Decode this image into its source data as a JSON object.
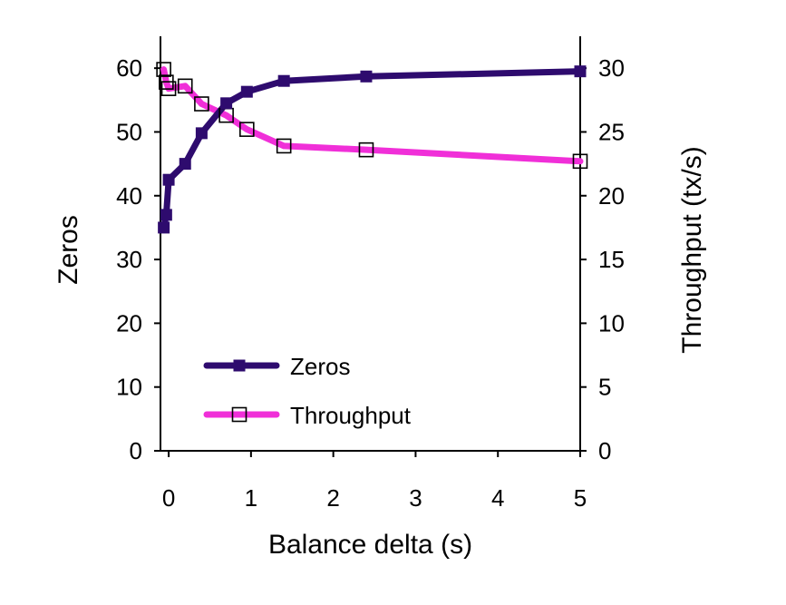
{
  "chart_data": {
    "type": "line",
    "xlabel": "Balance delta (s)",
    "ylabel_left": "Zeros",
    "ylabel_right": "Throughput (tx/s)",
    "xlim": [
      -0.1,
      5
    ],
    "x_ticks": [
      "0",
      "1",
      "2",
      "3",
      "4",
      "5"
    ],
    "x_tick_values": [
      0,
      1,
      2,
      3,
      4,
      5
    ],
    "ylim_left": [
      0,
      65
    ],
    "ylim_right": [
      0,
      32.5
    ],
    "y_left_ticks": [
      "0",
      "10",
      "20",
      "30",
      "40",
      "50",
      "60"
    ],
    "y_left_tick_values": [
      0,
      10,
      20,
      30,
      40,
      50,
      60
    ],
    "y_right_ticks": [
      "0",
      "5",
      "10",
      "15",
      "20",
      "25",
      "30"
    ],
    "y_right_tick_values": [
      0,
      5,
      10,
      15,
      20,
      25,
      30
    ],
    "grid": false,
    "legend_placement": "bottom-left",
    "series": [
      {
        "name": "Zeros",
        "axis": "left",
        "color": "#2e0b6e",
        "marker": "filled-square",
        "x": [
          -0.06,
          -0.03,
          0.0,
          0.2,
          0.4,
          0.7,
          0.95,
          1.4,
          2.4,
          5.0
        ],
        "y": [
          35,
          37,
          42.5,
          45,
          49.8,
          54.5,
          56.3,
          58,
          58.7,
          59.5
        ]
      },
      {
        "name": "Throughput",
        "axis": "right",
        "color": "#f02fd8",
        "marker": "open-square",
        "x": [
          -0.06,
          -0.03,
          0.0,
          0.2,
          0.4,
          0.7,
          0.95,
          1.4,
          2.4,
          5.0
        ],
        "y": [
          29.9,
          28.9,
          28.4,
          28.6,
          27.2,
          26.3,
          25.2,
          23.9,
          23.6,
          22.7
        ]
      }
    ]
  }
}
